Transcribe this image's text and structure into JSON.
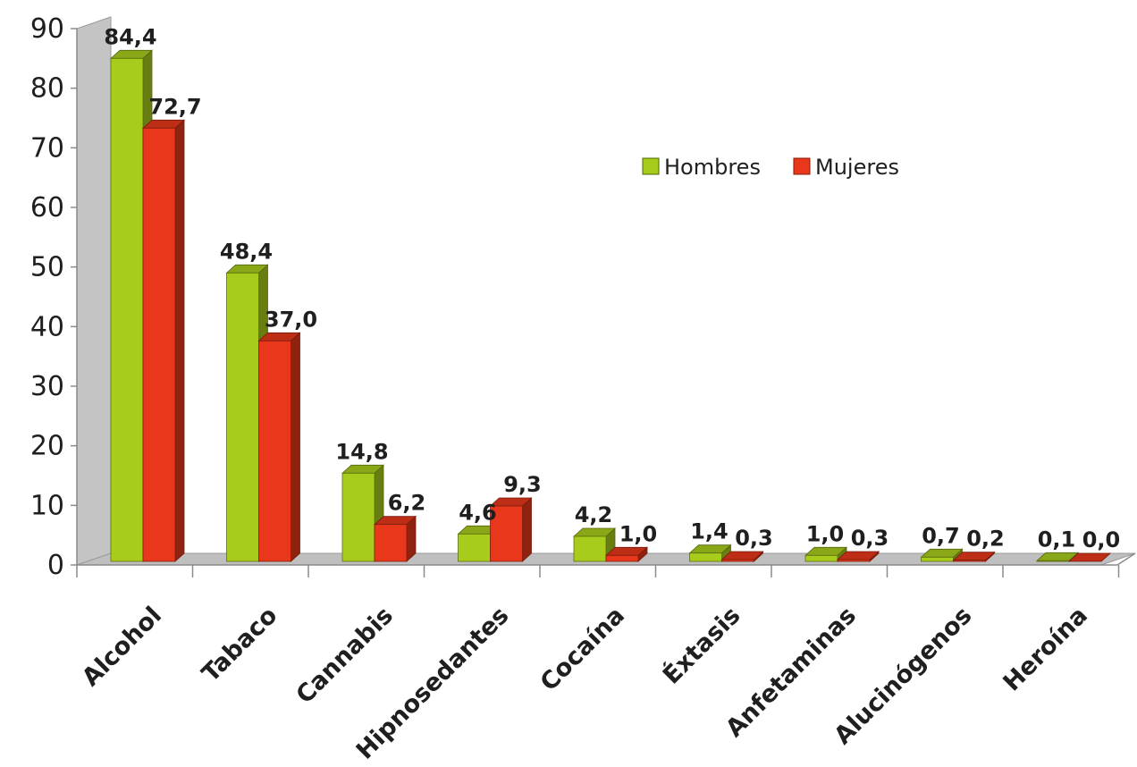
{
  "chart_data": {
    "type": "bar",
    "categories": [
      "Alcohol",
      "Tabaco",
      "Cannabis",
      "Hipnosedantes",
      "Cocaína",
      "Éxtasis",
      "Anfetaminas",
      "Alucinógenos",
      "Heroína"
    ],
    "series": [
      {
        "name": "Hombres",
        "values": [
          84.4,
          48.4,
          14.8,
          4.6,
          4.2,
          1.4,
          1.0,
          0.7,
          0.1
        ],
        "labels": [
          "84,4",
          "48,4",
          "14,8",
          "4,6",
          "4,2",
          "1,4",
          "1,0",
          "0,7",
          "0,1"
        ],
        "color": "#a8cc1c"
      },
      {
        "name": "Mujeres",
        "values": [
          72.7,
          37.0,
          6.2,
          9.3,
          1.0,
          0.3,
          0.3,
          0.2,
          0.0
        ],
        "labels": [
          "72,7",
          "37,0",
          "6,2",
          "9,3",
          "1,0",
          "0,3",
          "0,3",
          "0,2",
          "0,0"
        ],
        "color": "#e8371a"
      }
    ],
    "ylim": [
      0,
      90
    ],
    "yticks": [
      "0",
      "10",
      "20",
      "30",
      "40",
      "50",
      "60",
      "70",
      "80",
      "90"
    ],
    "legend_position": "top-right",
    "style": "3d-columns",
    "grid": false
  }
}
